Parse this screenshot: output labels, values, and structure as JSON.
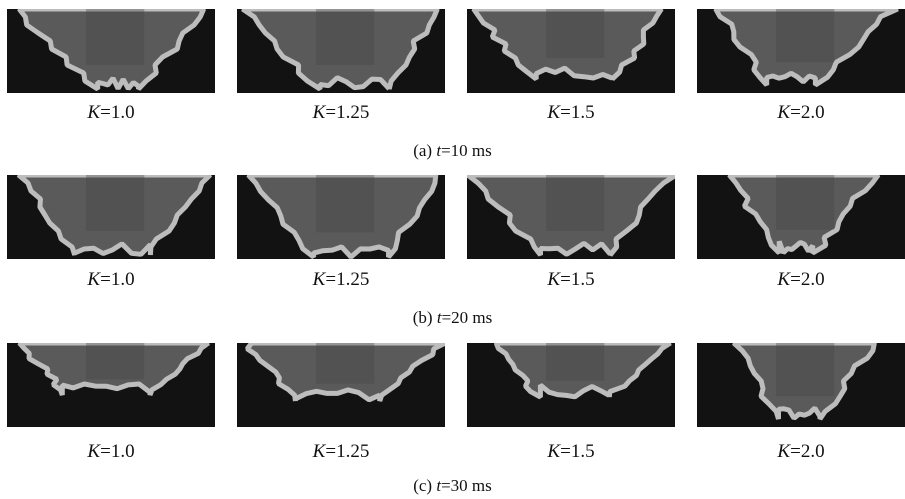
{
  "figure": {
    "rows": [
      {
        "caption_prefix": "(a) ",
        "caption_var": "t",
        "caption_rest": "=10 ms",
        "panels": [
          {
            "var": "K",
            "value": "=1.0"
          },
          {
            "var": "K",
            "value": "=1.25"
          },
          {
            "var": "K",
            "value": "=1.5"
          },
          {
            "var": "K",
            "value": "=2.0"
          }
        ]
      },
      {
        "caption_prefix": "(b) ",
        "caption_var": "t",
        "caption_rest": "=20 ms",
        "panels": [
          {
            "var": "K",
            "value": "=1.0"
          },
          {
            "var": "K",
            "value": "=1.25"
          },
          {
            "var": "K",
            "value": "=1.5"
          },
          {
            "var": "K",
            "value": "=2.0"
          }
        ]
      },
      {
        "caption_prefix": "(c) ",
        "caption_var": "t",
        "caption_rest": "=30 ms",
        "panels": [
          {
            "var": "K",
            "value": "=1.0"
          },
          {
            "var": "K",
            "value": "=1.25"
          },
          {
            "var": "K",
            "value": "=1.5"
          },
          {
            "var": "K",
            "value": "=2.0"
          }
        ]
      }
    ],
    "colors": {
      "background": "#121212",
      "fill": "#5a5a5a",
      "fill_dark": "#464646",
      "edge": "#bdbdbd"
    }
  }
}
